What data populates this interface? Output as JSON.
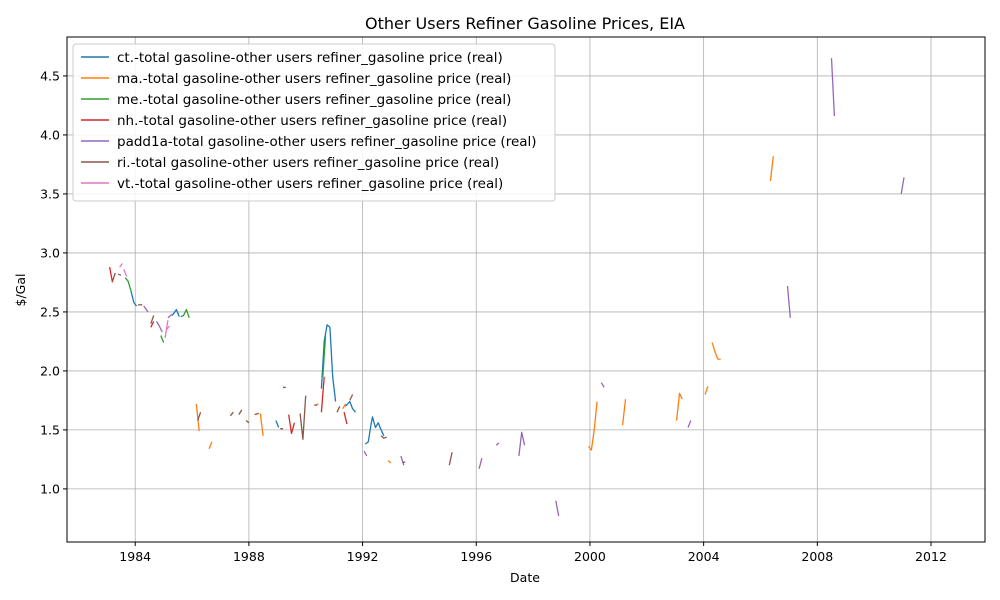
{
  "chart_data": {
    "type": "line",
    "title": "Other Users Refiner Gasoline Prices, EIA",
    "xlabel": "Date",
    "ylabel": "$/Gal",
    "xlim": [
      1981.6,
      2013.9
    ],
    "ylim": [
      0.55,
      4.83
    ],
    "x_ticks": [
      1984,
      1988,
      1992,
      1996,
      2000,
      2004,
      2008,
      2012
    ],
    "y_ticks": [
      1.0,
      1.5,
      2.0,
      2.5,
      3.0,
      3.5,
      4.0,
      4.5
    ],
    "y_tick_labels": [
      "1.0",
      "1.5",
      "2.0",
      "2.5",
      "3.0",
      "3.5",
      "4.0",
      "4.5"
    ],
    "grid": true,
    "legend_position": "upper-left",
    "series": [
      {
        "name": "ct.-total gasoline-other users refiner_gasoline price (real)",
        "color": "#1f77b4",
        "segments": [
          [
            [
              1983.85,
              2.68
            ],
            [
              1983.95,
              2.58
            ],
            [
              1984.05,
              2.55
            ]
          ],
          [
            [
              1985.3,
              2.47
            ],
            [
              1985.45,
              2.52
            ],
            [
              1985.55,
              2.46
            ]
          ],
          [
            [
              1988.95,
              1.58
            ],
            [
              1989.05,
              1.52
            ]
          ],
          [
            [
              1990.55,
              1.85
            ],
            [
              1990.65,
              2.25
            ],
            [
              1990.75,
              2.39
            ],
            [
              1990.85,
              2.37
            ],
            [
              1990.95,
              1.95
            ],
            [
              1991.05,
              1.74
            ]
          ],
          [
            [
              1991.4,
              1.7
            ],
            [
              1991.55,
              1.74
            ],
            [
              1991.65,
              1.68
            ],
            [
              1991.75,
              1.65
            ]
          ],
          [
            [
              1992.1,
              1.38
            ],
            [
              1992.2,
              1.4
            ],
            [
              1992.3,
              1.55
            ],
            [
              1992.35,
              1.61
            ],
            [
              1992.45,
              1.52
            ],
            [
              1992.55,
              1.56
            ],
            [
              1992.65,
              1.5
            ],
            [
              1992.75,
              1.45
            ]
          ]
        ]
      },
      {
        "name": "ma.-total gasoline-other users refiner_gasoline price (real)",
        "color": "#ff7f0e",
        "segments": [
          [
            [
              1986.15,
              1.72
            ],
            [
              1986.25,
              1.49
            ]
          ],
          [
            [
              1986.6,
              1.34
            ],
            [
              1986.7,
              1.4
            ]
          ],
          [
            [
              1988.4,
              1.64
            ],
            [
              1988.5,
              1.45
            ]
          ],
          [
            [
              1990.35,
              1.71
            ],
            [
              1990.45,
              1.72
            ]
          ],
          [
            [
              1991.3,
              1.68
            ],
            [
              1991.4,
              1.72
            ]
          ],
          [
            [
              1992.9,
              1.24
            ],
            [
              1993.0,
              1.22
            ]
          ],
          [
            [
              1999.95,
              1.36
            ],
            [
              2000.05,
              1.33
            ],
            [
              2000.15,
              1.5
            ],
            [
              2000.25,
              1.74
            ]
          ],
          [
            [
              2001.15,
              1.54
            ],
            [
              2001.25,
              1.76
            ]
          ],
          [
            [
              2003.05,
              1.58
            ],
            [
              2003.15,
              1.81
            ],
            [
              2003.25,
              1.76
            ]
          ],
          [
            [
              2004.05,
              1.8
            ],
            [
              2004.15,
              1.87
            ]
          ],
          [
            [
              2004.3,
              2.24
            ],
            [
              2004.4,
              2.16
            ],
            [
              2004.5,
              2.1
            ],
            [
              2004.6,
              2.1
            ]
          ],
          [
            [
              2006.35,
              3.61
            ],
            [
              2006.45,
              3.82
            ]
          ]
        ]
      },
      {
        "name": "me.-total gasoline-other users refiner_gasoline price (real)",
        "color": "#2ca02c",
        "segments": [
          [
            [
              1983.65,
              2.79
            ],
            [
              1983.75,
              2.76
            ],
            [
              1983.85,
              2.68
            ]
          ],
          [
            [
              1984.9,
              2.3
            ],
            [
              1985.0,
              2.24
            ]
          ],
          [
            [
              1985.6,
              2.46
            ],
            [
              1985.7,
              2.47
            ],
            [
              1985.8,
              2.52
            ],
            [
              1985.9,
              2.45
            ]
          ],
          [
            [
              1990.6,
              1.95
            ],
            [
              1990.7,
              2.3
            ]
          ]
        ]
      },
      {
        "name": "nh.-total gasoline-other users refiner_gasoline price (real)",
        "color": "#d62728",
        "segments": [
          [
            [
              1983.1,
              2.88
            ],
            [
              1983.2,
              2.75
            ]
          ],
          [
            [
              1984.55,
              2.37
            ],
            [
              1984.65,
              2.42
            ]
          ],
          [
            [
              1989.4,
              1.63
            ],
            [
              1989.5,
              1.47
            ],
            [
              1989.6,
              1.56
            ]
          ],
          [
            [
              1990.55,
              1.65
            ],
            [
              1990.65,
              1.95
            ]
          ],
          [
            [
              1991.35,
              1.65
            ],
            [
              1991.45,
              1.55
            ]
          ]
        ]
      },
      {
        "name": "padd1a-total gasoline-other users refiner_gasoline price (real)",
        "color": "#9467bd",
        "segments": [
          [
            [
              1984.3,
              2.55
            ],
            [
              1984.45,
              2.5
            ]
          ],
          [
            [
              1984.75,
              2.42
            ],
            [
              1984.85,
              2.38
            ],
            [
              1984.95,
              2.33
            ]
          ],
          [
            [
              1985.15,
              2.45
            ],
            [
              1985.3,
              2.48
            ]
          ],
          [
            [
              1992.05,
              1.32
            ],
            [
              1992.15,
              1.28
            ]
          ],
          [
            [
              1993.35,
              1.28
            ],
            [
              1993.45,
              1.2
            ]
          ],
          [
            [
              1996.1,
              1.17
            ],
            [
              1996.2,
              1.26
            ]
          ],
          [
            [
              1996.7,
              1.37
            ],
            [
              1996.8,
              1.39
            ]
          ],
          [
            [
              1997.5,
              1.28
            ],
            [
              1997.6,
              1.48
            ],
            [
              1997.7,
              1.37
            ]
          ],
          [
            [
              1998.8,
              0.9
            ],
            [
              1998.9,
              0.77
            ]
          ],
          [
            [
              2000.4,
              1.9
            ],
            [
              2000.5,
              1.86
            ]
          ],
          [
            [
              2003.45,
              1.52
            ],
            [
              2003.55,
              1.58
            ]
          ],
          [
            [
              2006.95,
              2.72
            ],
            [
              2007.05,
              2.45
            ]
          ],
          [
            [
              2008.5,
              4.65
            ],
            [
              2008.6,
              4.16
            ]
          ],
          [
            [
              2010.95,
              3.5
            ],
            [
              2011.05,
              3.64
            ]
          ]
        ]
      },
      {
        "name": "ri.-total gasoline-other users refiner_gasoline price (real)",
        "color": "#8c564b",
        "segments": [
          [
            [
              1983.2,
              2.76
            ],
            [
              1983.3,
              2.83
            ]
          ],
          [
            [
              1983.4,
              2.82
            ],
            [
              1983.5,
              2.81
            ]
          ],
          [
            [
              1984.1,
              2.56
            ],
            [
              1984.25,
              2.56
            ]
          ],
          [
            [
              1984.55,
              2.4
            ],
            [
              1984.65,
              2.47
            ]
          ],
          [
            [
              1986.2,
              1.58
            ],
            [
              1986.3,
              1.65
            ]
          ],
          [
            [
              1987.35,
              1.62
            ],
            [
              1987.45,
              1.65
            ]
          ],
          [
            [
              1987.65,
              1.63
            ],
            [
              1987.75,
              1.67
            ]
          ],
          [
            [
              1987.9,
              1.58
            ],
            [
              1988.0,
              1.56
            ]
          ],
          [
            [
              1988.2,
              1.63
            ],
            [
              1988.35,
              1.64
            ]
          ],
          [
            [
              1989.1,
              1.51
            ],
            [
              1989.2,
              1.51
            ]
          ],
          [
            [
              1989.2,
              1.86
            ],
            [
              1989.3,
              1.86
            ]
          ],
          [
            [
              1989.8,
              1.64
            ],
            [
              1989.9,
              1.42
            ],
            [
              1990.0,
              1.79
            ]
          ],
          [
            [
              1990.3,
              1.71
            ],
            [
              1990.4,
              1.71
            ]
          ],
          [
            [
              1991.1,
              1.65
            ],
            [
              1991.2,
              1.7
            ]
          ],
          [
            [
              1991.55,
              1.75
            ],
            [
              1991.65,
              1.8
            ]
          ],
          [
            [
              1992.65,
              1.45
            ],
            [
              1992.75,
              1.43
            ],
            [
              1992.85,
              1.44
            ]
          ],
          [
            [
              1993.4,
              1.22
            ],
            [
              1993.5,
              1.23
            ]
          ],
          [
            [
              1995.05,
              1.2
            ],
            [
              1995.15,
              1.31
            ]
          ]
        ]
      },
      {
        "name": "vt.-total gasoline-other users refiner_gasoline price (real)",
        "color": "#e377c2",
        "segments": [
          [
            [
              1983.45,
              2.88
            ],
            [
              1983.55,
              2.91
            ]
          ],
          [
            [
              1983.6,
              2.86
            ],
            [
              1983.7,
              2.8
            ]
          ],
          [
            [
              1985.05,
              2.28
            ],
            [
              1985.15,
              2.43
            ]
          ],
          [
            [
              1985.1,
              2.35
            ],
            [
              1985.2,
              2.38
            ]
          ]
        ]
      }
    ]
  }
}
